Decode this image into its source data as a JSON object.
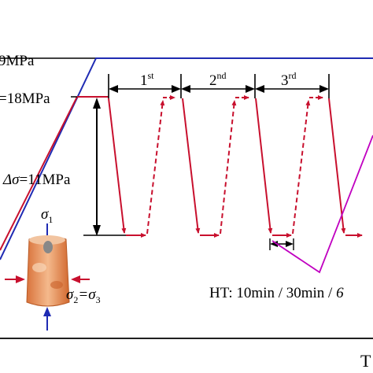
{
  "labels": {
    "upper_stress_prefix": "9MPa",
    "stress_18_prefix": "=18MPa",
    "delta_sigma_symbol": "Δσ",
    "delta_sigma_value": "=11MPa",
    "cycle_1_number": "1",
    "cycle_1_suffix": "st",
    "cycle_2_number": "2",
    "cycle_2_suffix": "nd",
    "cycle_3_number": "3",
    "cycle_3_suffix": "rd",
    "sigma1_symbol": "σ",
    "sigma1_subscript": "1",
    "sigma23_left_symbol": "σ",
    "sigma23_left_subscript": "2",
    "sigma23_equals": "=σ",
    "sigma23_right_subscript": "3",
    "hold_time": "HT: 10min / 30min / ",
    "hold_time_cut": "6",
    "time_axis_fragment": "T"
  },
  "colors": {
    "red": "#c8102e",
    "blue": "#1f2bb3",
    "magenta": "#c000c0",
    "black": "#000000",
    "specimen": "#e8854e",
    "specimen_light": "#f4b98c",
    "core": "#888888"
  },
  "icons": {
    "specimen": "cylindrical-rock-specimen-icon"
  }
}
